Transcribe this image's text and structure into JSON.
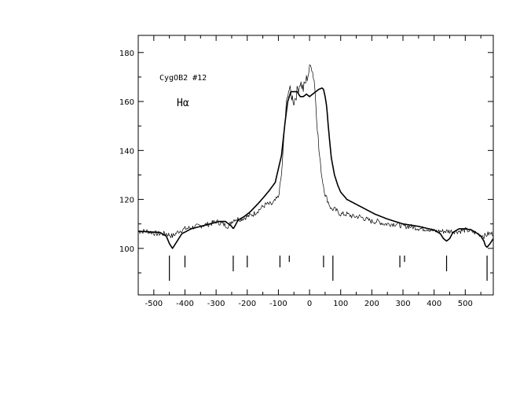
{
  "chart_data": {
    "type": "line",
    "title": "",
    "xlabel": "",
    "ylabel": "",
    "xlim": [
      -550,
      590
    ],
    "ylim": [
      81,
      187
    ],
    "grid": false,
    "annotations": [
      "CygOB2 #12",
      "Hα"
    ],
    "x_ticks": [
      -500,
      -400,
      -300,
      -200,
      -100,
      0,
      100,
      200,
      300,
      400,
      500
    ],
    "y_ticks": [
      100,
      120,
      140,
      160,
      180
    ],
    "series": [
      {
        "style": "thin",
        "x": [
          -550,
          -520,
          -490,
          -460,
          -440,
          -420,
          -400,
          -380,
          -360,
          -340,
          -320,
          -300,
          -280,
          -260,
          -250,
          -240,
          -220,
          -200,
          -180,
          -160,
          -140,
          -120,
          -100,
          -90,
          -80,
          -70,
          -65,
          -60,
          -50,
          -40,
          -30,
          -20,
          -10,
          0,
          5,
          10,
          15,
          20,
          25,
          30,
          40,
          50,
          60,
          70,
          80,
          100,
          120,
          140,
          160,
          180,
          200,
          220,
          240,
          260,
          280,
          300,
          320,
          340,
          360,
          380,
          400,
          420,
          440,
          460,
          480,
          500,
          520,
          540,
          560,
          575,
          590
        ],
        "values": [
          107,
          107,
          106,
          106,
          105,
          107,
          108,
          108.5,
          109,
          109.5,
          110,
          111,
          110,
          109,
          111,
          112,
          112,
          113,
          114,
          116,
          118,
          118,
          121,
          130,
          150,
          164,
          165,
          163,
          160,
          164,
          168,
          165,
          169,
          173,
          176,
          172,
          169,
          160,
          150,
          140,
          129,
          122,
          119,
          116,
          116,
          114,
          114,
          113,
          113,
          112,
          111,
          111,
          110,
          110,
          110,
          109,
          109,
          108.5,
          108,
          108,
          107,
          107,
          107,
          107,
          107,
          107.5,
          107,
          106,
          105,
          106,
          106
        ]
      },
      {
        "style": "thick",
        "x": [
          -550,
          -480,
          -460,
          -450,
          -440,
          -430,
          -410,
          -380,
          -350,
          -320,
          -290,
          -270,
          -250,
          -245,
          -240,
          -230,
          -210,
          -190,
          -160,
          -130,
          -110,
          -90,
          -80,
          -70,
          -60,
          -50,
          -40,
          -30,
          -20,
          -10,
          0,
          10,
          20,
          30,
          40,
          45,
          50,
          55,
          60,
          70,
          80,
          90,
          100,
          120,
          150,
          180,
          210,
          250,
          300,
          350,
          400,
          420,
          430,
          440,
          450,
          460,
          480,
          500,
          520,
          540,
          550,
          560,
          565,
          570,
          580,
          590
        ],
        "values": [
          107,
          106.5,
          105,
          102,
          100,
          102,
          106,
          108,
          109,
          110,
          111,
          111,
          109,
          108,
          109,
          111.5,
          113,
          115,
          119,
          123.5,
          127,
          138,
          150,
          160,
          164,
          164,
          164,
          162,
          162,
          163,
          162,
          163,
          164,
          165,
          165.5,
          165,
          162,
          158,
          150,
          137,
          130,
          126,
          123,
          120,
          118,
          116,
          114,
          112,
          110,
          109,
          107.5,
          106,
          104,
          103,
          104,
          106.5,
          108,
          108,
          107.5,
          106,
          105,
          103,
          101,
          100.5,
          102,
          104
        ]
      }
    ],
    "markers": [
      {
        "x": -450,
        "length": "long"
      },
      {
        "x": -400,
        "length": "short"
      },
      {
        "x": -245,
        "length": "medium"
      },
      {
        "x": -200,
        "length": "short"
      },
      {
        "x": -95,
        "length": "short"
      },
      {
        "x": -65,
        "length": "tiny"
      },
      {
        "x": 45,
        "length": "short"
      },
      {
        "x": 75,
        "length": "long"
      },
      {
        "x": 290,
        "length": "short"
      },
      {
        "x": 305,
        "length": "tiny"
      },
      {
        "x": 440,
        "length": "medium"
      },
      {
        "x": 570,
        "length": "long"
      }
    ]
  },
  "colors": {
    "line": "#000000",
    "background": "#ffffff"
  }
}
